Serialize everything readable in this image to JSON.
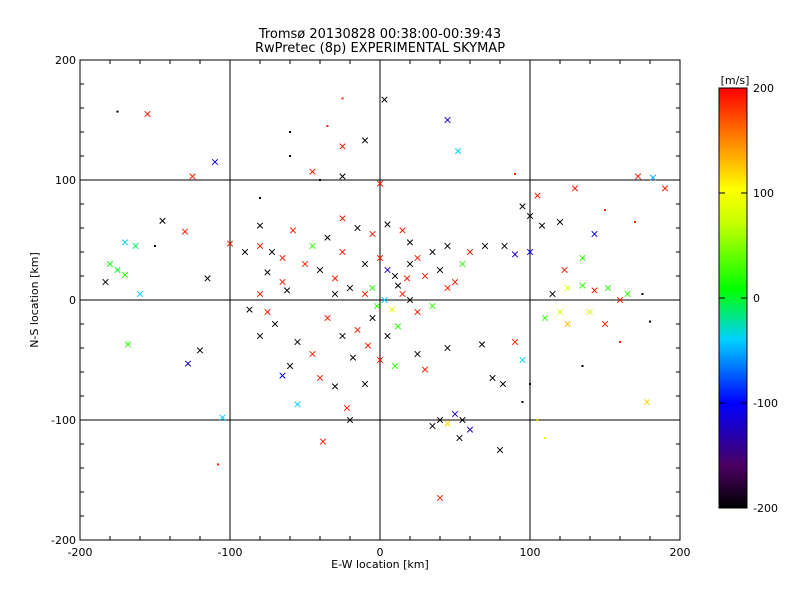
{
  "chart_data": {
    "type": "scatter",
    "title": "Tromsø 20130828 00:38:00-00:39:43",
    "subtitle": "RwPretec (8p) EXPERIMENTAL SKYMAP",
    "xlabel": "E-W location [km]",
    "ylabel": "N-S location [km]",
    "xlim": [
      -200,
      200
    ],
    "ylim": [
      -200,
      200
    ],
    "x_ticks": [
      "-200",
      "-100",
      "0",
      "100",
      "200"
    ],
    "y_ticks": [
      "-200",
      "-100",
      "0",
      "100",
      "200"
    ],
    "grid_lines_at": [
      -100,
      0,
      100
    ],
    "colorbar": {
      "label": "[m/s]",
      "range": [
        -200,
        200
      ],
      "ticks": [
        "-200",
        "-100",
        "0",
        "100",
        "200"
      ],
      "colormap": "black-purple-blue-cyan-green-yellow-orange-red"
    },
    "markers": {
      "cross": "x marker",
      "dot": "small dot"
    },
    "series": [
      {
        "marker": "x",
        "points": [
          [
            -155,
            155,
            190
          ],
          [
            -110,
            115,
            -110
          ],
          [
            -125,
            103,
            190
          ],
          [
            3,
            167,
            -200
          ],
          [
            45,
            150,
            -120
          ],
          [
            -10,
            133,
            -200
          ],
          [
            -25,
            128,
            190
          ],
          [
            52,
            124,
            -40
          ],
          [
            -45,
            107,
            190
          ],
          [
            -25,
            103,
            -200
          ],
          [
            172,
            103,
            190
          ],
          [
            182,
            102,
            -50
          ],
          [
            190,
            93,
            190
          ],
          [
            130,
            93,
            190
          ],
          [
            105,
            87,
            190
          ],
          [
            0,
            97,
            190
          ],
          [
            -145,
            66,
            -200
          ],
          [
            -130,
            57,
            190
          ],
          [
            -170,
            48,
            -40
          ],
          [
            -163,
            45,
            -10
          ],
          [
            -180,
            30,
            10
          ],
          [
            -175,
            25,
            0
          ],
          [
            -170,
            21,
            20
          ],
          [
            -183,
            15,
            -200
          ],
          [
            -160,
            5,
            -40
          ],
          [
            -115,
            18,
            -200
          ],
          [
            -80,
            62,
            -200
          ],
          [
            -100,
            47,
            190
          ],
          [
            -90,
            40,
            -200
          ],
          [
            -80,
            45,
            190
          ],
          [
            -72,
            40,
            -200
          ],
          [
            -65,
            35,
            190
          ],
          [
            -75,
            23,
            -200
          ],
          [
            -65,
            15,
            190
          ],
          [
            -62,
            8,
            -200
          ],
          [
            -80,
            5,
            190
          ],
          [
            -87,
            -8,
            -200
          ],
          [
            -75,
            -10,
            190
          ],
          [
            -70,
            -20,
            -200
          ],
          [
            -80,
            -30,
            -200
          ],
          [
            -55,
            -35,
            -200
          ],
          [
            -45,
            -45,
            190
          ],
          [
            -60,
            -55,
            -200
          ],
          [
            -65,
            -63,
            -100
          ],
          [
            -40,
            -65,
            190
          ],
          [
            -30,
            -72,
            -200
          ],
          [
            -55,
            -87,
            -40
          ],
          [
            -22,
            -90,
            190
          ],
          [
            -38,
            -118,
            190
          ],
          [
            -20,
            -100,
            -200
          ],
          [
            -10,
            -70,
            -200
          ],
          [
            0,
            -50,
            190
          ],
          [
            10,
            -55,
            20
          ],
          [
            25,
            -45,
            -200
          ],
          [
            30,
            -58,
            190
          ],
          [
            45,
            -40,
            -200
          ],
          [
            -120,
            -42,
            -200
          ],
          [
            -128,
            -53,
            -120
          ],
          [
            -168,
            -37,
            20
          ],
          [
            -105,
            -98,
            -40
          ],
          [
            40,
            -100,
            -200
          ],
          [
            45,
            -103,
            120
          ],
          [
            50,
            -95,
            -120
          ],
          [
            55,
            -100,
            -200
          ],
          [
            60,
            -108,
            -120
          ],
          [
            53,
            -115,
            -200
          ],
          [
            35,
            -105,
            -200
          ],
          [
            40,
            -165,
            190
          ],
          [
            80,
            -125,
            -200
          ],
          [
            82,
            -70,
            -200
          ],
          [
            95,
            -50,
            -40
          ],
          [
            75,
            -65,
            -200
          ],
          [
            68,
            -37,
            -200
          ],
          [
            90,
            -35,
            190
          ],
          [
            110,
            -15,
            20
          ],
          [
            120,
            -10,
            90
          ],
          [
            125,
            -20,
            130
          ],
          [
            140,
            -10,
            80
          ],
          [
            150,
            -20,
            190
          ],
          [
            115,
            5,
            -200
          ],
          [
            125,
            10,
            90
          ],
          [
            135,
            12,
            20
          ],
          [
            143,
            8,
            190
          ],
          [
            152,
            10,
            20
          ],
          [
            160,
            0,
            190
          ],
          [
            165,
            5,
            20
          ],
          [
            123,
            25,
            190
          ],
          [
            135,
            35,
            20
          ],
          [
            143,
            55,
            -110
          ],
          [
            120,
            65,
            -200
          ],
          [
            100,
            70,
            -200
          ],
          [
            95,
            78,
            -200
          ],
          [
            108,
            62,
            -200
          ],
          [
            100,
            40,
            -100
          ],
          [
            90,
            38,
            -120
          ],
          [
            83,
            45,
            -200
          ],
          [
            70,
            45,
            -200
          ],
          [
            60,
            40,
            190
          ],
          [
            55,
            30,
            20
          ],
          [
            45,
            45,
            -200
          ],
          [
            35,
            40,
            -200
          ],
          [
            25,
            35,
            190
          ],
          [
            20,
            48,
            -200
          ],
          [
            15,
            58,
            190
          ],
          [
            5,
            63,
            -200
          ],
          [
            -5,
            55,
            190
          ],
          [
            -15,
            60,
            -200
          ],
          [
            -25,
            68,
            190
          ],
          [
            -35,
            52,
            -200
          ],
          [
            -45,
            45,
            20
          ],
          [
            -50,
            30,
            190
          ],
          [
            -40,
            25,
            -200
          ],
          [
            -30,
            18,
            190
          ],
          [
            -20,
            10,
            -200
          ],
          [
            -10,
            5,
            190
          ],
          [
            5,
            25,
            -120
          ],
          [
            10,
            20,
            -200
          ],
          [
            15,
            5,
            190
          ],
          [
            20,
            0,
            -200
          ],
          [
            25,
            -10,
            190
          ],
          [
            35,
            -5,
            20
          ],
          [
            45,
            10,
            190
          ],
          [
            -5,
            -15,
            -200
          ],
          [
            -15,
            -25,
            190
          ],
          [
            -25,
            -30,
            -200
          ],
          [
            -35,
            -15,
            190
          ],
          [
            -8,
            -38,
            190
          ],
          [
            -18,
            -48,
            -200
          ],
          [
            5,
            -30,
            -200
          ],
          [
            12,
            -22,
            20
          ],
          [
            30,
            20,
            190
          ],
          [
            40,
            25,
            -200
          ],
          [
            50,
            15,
            190
          ],
          [
            20,
            30,
            -200
          ],
          [
            0,
            35,
            190
          ],
          [
            -10,
            30,
            -200
          ],
          [
            -25,
            40,
            190
          ],
          [
            -58,
            58,
            190
          ],
          [
            178,
            -85,
            120
          ],
          [
            -30,
            5,
            -200
          ],
          [
            -5,
            10,
            20
          ],
          [
            3,
            0,
            -40
          ],
          [
            8,
            -8,
            90
          ],
          [
            -2,
            -5,
            20
          ],
          [
            12,
            12,
            -200
          ],
          [
            18,
            18,
            190
          ]
        ]
      },
      {
        "marker": "dot",
        "points": [
          [
            -175,
            157,
            -200
          ],
          [
            -25,
            168,
            190
          ],
          [
            -60,
            140,
            -200
          ],
          [
            -35,
            145,
            190
          ],
          [
            -60,
            120,
            -200
          ],
          [
            -40,
            100,
            -200
          ],
          [
            90,
            105,
            190
          ],
          [
            -108,
            -137,
            190
          ],
          [
            -80,
            85,
            -200
          ],
          [
            -150,
            45,
            -200
          ],
          [
            150,
            75,
            190
          ],
          [
            170,
            65,
            190
          ],
          [
            175,
            5,
            -200
          ],
          [
            160,
            -35,
            190
          ],
          [
            180,
            -18,
            -200
          ],
          [
            135,
            -55,
            -200
          ],
          [
            100,
            -70,
            -200
          ],
          [
            95,
            -85,
            -200
          ],
          [
            105,
            -100,
            120
          ],
          [
            110,
            -115,
            90
          ]
        ]
      }
    ]
  }
}
